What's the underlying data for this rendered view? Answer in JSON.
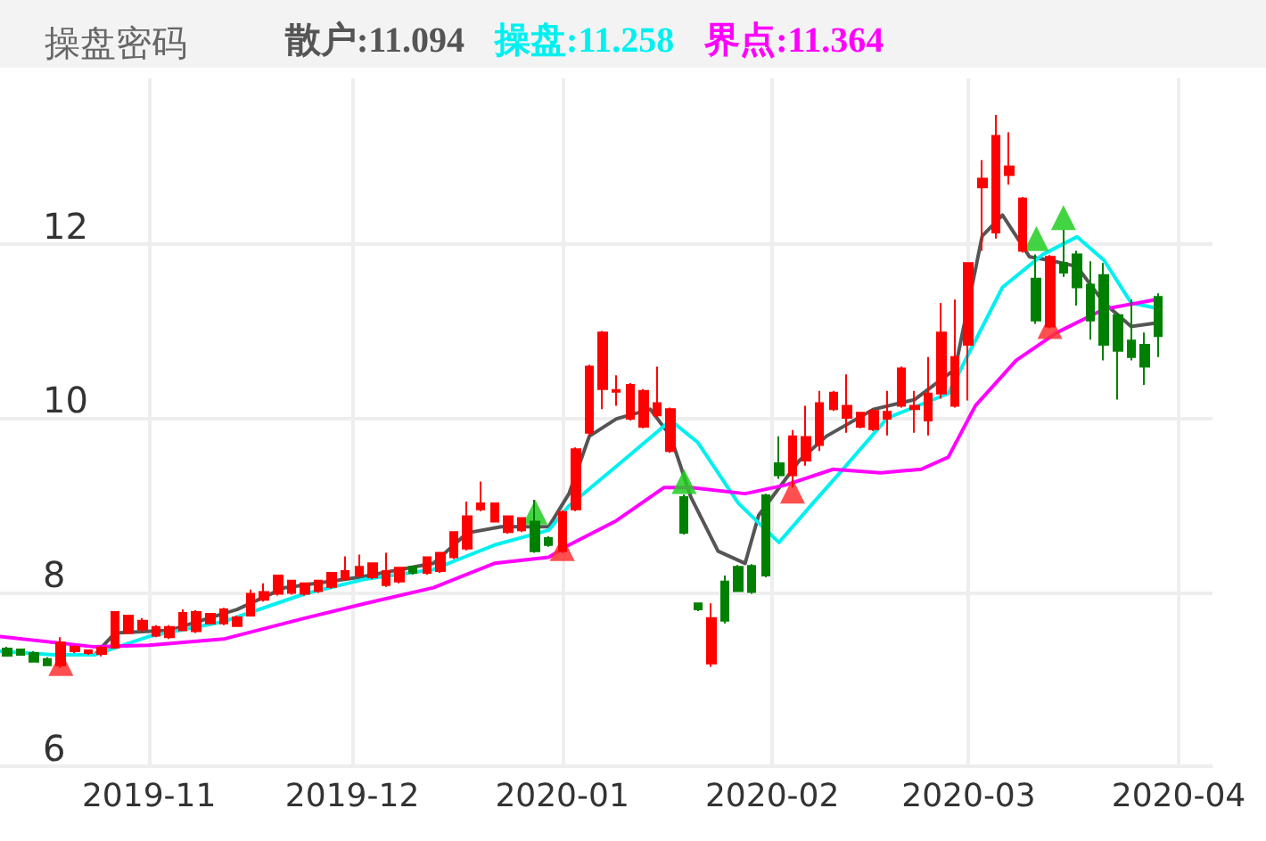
{
  "chart_data": {
    "type": "candlestick",
    "title": "操盘密码",
    "legend": "top",
    "grid": true,
    "xlim": [
      "2019-10-10",
      "2020-04-06"
    ],
    "xticks": [
      {
        "value": "2019-11-01",
        "label": "2019-11"
      },
      {
        "value": "2019-12-01",
        "label": "2019-12"
      },
      {
        "value": "2020-01-01",
        "label": "2020-01"
      },
      {
        "value": "2020-02-01",
        "label": "2020-02"
      },
      {
        "value": "2020-03-01",
        "label": "2020-03"
      },
      {
        "value": "2020-04-01",
        "label": "2020-04"
      }
    ],
    "ylim": [
      6,
      13.9
    ],
    "yticks": [
      6,
      8,
      10,
      12
    ],
    "x": [
      "2019-10-11",
      "2019-10-13",
      "2019-10-15",
      "2019-10-17",
      "2019-10-19",
      "2019-10-21",
      "2019-10-23",
      "2019-10-25",
      "2019-10-27",
      "2019-10-29",
      "2019-10-31",
      "2019-11-02",
      "2019-11-04",
      "2019-11-06",
      "2019-11-08",
      "2019-11-10",
      "2019-11-12",
      "2019-11-14",
      "2019-11-16",
      "2019-11-18",
      "2019-11-20",
      "2019-11-22",
      "2019-11-24",
      "2019-11-26",
      "2019-11-28",
      "2019-11-30",
      "2019-12-02",
      "2019-12-04",
      "2019-12-06",
      "2019-12-08",
      "2019-12-10",
      "2019-12-12",
      "2019-12-14",
      "2019-12-16",
      "2019-12-18",
      "2019-12-20",
      "2019-12-22",
      "2019-12-24",
      "2019-12-26",
      "2019-12-28",
      "2019-12-30",
      "2020-01-01",
      "2020-01-03",
      "2020-01-05",
      "2020-01-07",
      "2020-01-09",
      "2020-01-11",
      "2020-01-13",
      "2020-01-15",
      "2020-01-17",
      "2020-01-19",
      "2020-01-21",
      "2020-01-23",
      "2020-01-25",
      "2020-01-27",
      "2020-01-29",
      "2020-01-31",
      "2020-02-02",
      "2020-02-04",
      "2020-02-06",
      "2020-02-08",
      "2020-02-10",
      "2020-02-12",
      "2020-02-14",
      "2020-02-16",
      "2020-02-18",
      "2020-02-20",
      "2020-02-22",
      "2020-02-24",
      "2020-02-26",
      "2020-02-28",
      "2020-03-01",
      "2020-03-03",
      "2020-03-05",
      "2020-03-07",
      "2020-03-09",
      "2020-03-11",
      "2020-03-13",
      "2020-03-15",
      "2020-03-17",
      "2020-03-19",
      "2020-03-21",
      "2020-03-23",
      "2020-03-25",
      "2020-03-27",
      "2020-03-29"
    ],
    "ohlc": [
      [
        7.35,
        7.37,
        7.26,
        7.27
      ],
      [
        7.34,
        7.35,
        7.27,
        7.28
      ],
      [
        7.3,
        7.32,
        7.19,
        7.2
      ],
      [
        7.23,
        7.25,
        7.15,
        7.16
      ],
      [
        7.16,
        7.48,
        7.13,
        7.42
      ],
      [
        7.32,
        7.39,
        7.3,
        7.37
      ],
      [
        7.3,
        7.34,
        7.28,
        7.33
      ],
      [
        7.29,
        7.38,
        7.26,
        7.36
      ],
      [
        7.36,
        7.78,
        7.35,
        7.77
      ],
      [
        7.53,
        7.74,
        7.52,
        7.73
      ],
      [
        7.57,
        7.7,
        7.54,
        7.67
      ],
      [
        7.5,
        7.62,
        7.48,
        7.6
      ],
      [
        7.48,
        7.62,
        7.46,
        7.6
      ],
      [
        7.56,
        7.8,
        7.55,
        7.76
      ],
      [
        7.55,
        7.79,
        7.53,
        7.77
      ],
      [
        7.64,
        7.76,
        7.63,
        7.75
      ],
      [
        7.64,
        7.82,
        7.62,
        7.8
      ],
      [
        7.61,
        7.73,
        7.6,
        7.71
      ],
      [
        7.73,
        8.03,
        7.72,
        7.98
      ],
      [
        7.91,
        8.1,
        7.89,
        8.0
      ],
      [
        7.98,
        8.2,
        7.96,
        8.19
      ],
      [
        7.99,
        8.14,
        7.97,
        8.13
      ],
      [
        7.98,
        8.11,
        7.96,
        8.1
      ],
      [
        8.01,
        8.14,
        7.99,
        8.13
      ],
      [
        8.06,
        8.23,
        8.04,
        8.22
      ],
      [
        8.15,
        8.41,
        8.13,
        8.24
      ],
      [
        8.19,
        8.43,
        8.17,
        8.29
      ],
      [
        8.17,
        8.34,
        8.15,
        8.33
      ],
      [
        8.08,
        8.45,
        8.06,
        8.24
      ],
      [
        8.12,
        8.29,
        8.1,
        8.28
      ],
      [
        8.29,
        8.3,
        8.2,
        8.22
      ],
      [
        8.22,
        8.41,
        8.2,
        8.4
      ],
      [
        8.24,
        8.46,
        8.22,
        8.45
      ],
      [
        8.4,
        8.7,
        8.38,
        8.69
      ],
      [
        8.5,
        9.04,
        8.48,
        8.87
      ],
      [
        8.95,
        9.27,
        8.93,
        9.02
      ],
      [
        8.81,
        9.03,
        8.8,
        9.02
      ],
      [
        8.69,
        8.88,
        8.67,
        8.87
      ],
      [
        8.71,
        8.86,
        8.69,
        8.85
      ],
      [
        8.81,
        9.06,
        8.45,
        8.47
      ],
      [
        8.62,
        8.64,
        8.52,
        8.54
      ],
      [
        8.47,
        8.94,
        8.45,
        8.92
      ],
      [
        8.95,
        9.66,
        8.93,
        9.64
      ],
      [
        9.83,
        10.61,
        9.79,
        10.59
      ],
      [
        10.33,
        11.0,
        10.1,
        10.98
      ],
      [
        10.3,
        10.49,
        10.14,
        10.32
      ],
      [
        9.99,
        10.4,
        9.97,
        10.38
      ],
      [
        9.9,
        10.33,
        9.88,
        10.31
      ],
      [
        10.03,
        10.59,
        10.0,
        10.17
      ],
      [
        9.62,
        10.12,
        9.6,
        10.1
      ],
      [
        9.09,
        9.12,
        8.66,
        8.68
      ],
      [
        7.87,
        7.88,
        7.78,
        7.8
      ],
      [
        7.18,
        7.87,
        7.14,
        7.7
      ],
      [
        8.12,
        8.19,
        7.64,
        7.67
      ],
      [
        8.29,
        8.31,
        8.0,
        8.01
      ],
      [
        8.3,
        8.32,
        7.98,
        8.0
      ],
      [
        9.11,
        9.13,
        8.17,
        8.19
      ],
      [
        9.48,
        9.79,
        9.3,
        9.34
      ],
      [
        9.34,
        9.86,
        9.2,
        9.79
      ],
      [
        9.51,
        10.14,
        9.45,
        9.78
      ],
      [
        9.69,
        10.31,
        9.62,
        10.17
      ],
      [
        10.1,
        10.31,
        10.08,
        10.29
      ],
      [
        10.0,
        10.5,
        9.83,
        10.14
      ],
      [
        9.9,
        10.07,
        9.88,
        10.06
      ],
      [
        9.87,
        10.1,
        9.85,
        10.08
      ],
      [
        9.99,
        10.31,
        9.8,
        10.07
      ],
      [
        10.14,
        10.59,
        10.12,
        10.57
      ],
      [
        10.1,
        10.31,
        9.83,
        10.14
      ],
      [
        9.97,
        10.7,
        9.8,
        10.28
      ],
      [
        10.28,
        11.32,
        10.22,
        10.98
      ],
      [
        10.14,
        11.36,
        10.12,
        10.7
      ],
      [
        10.84,
        11.78,
        10.2,
        11.78
      ],
      [
        12.65,
        12.96,
        11.92,
        12.75
      ],
      [
        12.13,
        13.48,
        12.06,
        13.24
      ],
      [
        12.79,
        13.28,
        12.68,
        12.89
      ],
      [
        11.92,
        12.54,
        11.9,
        12.52
      ],
      [
        11.6,
        11.88,
        11.08,
        11.12
      ],
      [
        11.05,
        11.87,
        11.03,
        11.85
      ],
      [
        11.78,
        12.16,
        11.62,
        11.67
      ],
      [
        11.88,
        11.92,
        11.29,
        11.5
      ],
      [
        11.53,
        11.8,
        10.9,
        11.12
      ],
      [
        11.64,
        11.78,
        10.66,
        10.84
      ],
      [
        11.18,
        11.2,
        10.21,
        10.77
      ],
      [
        10.89,
        11.36,
        10.66,
        10.7
      ],
      [
        10.84,
        10.98,
        10.38,
        10.59
      ],
      [
        11.39,
        11.43,
        10.7,
        10.94
      ]
    ],
    "colors": [
      "#008000",
      "#008000",
      "#008000",
      "#008000",
      "#ff0000",
      "#ff0000",
      "#ff0000",
      "#ff0000",
      "#ff0000",
      "#ff0000",
      "#ff0000",
      "#ff0000",
      "#ff0000",
      "#ff0000",
      "#ff0000",
      "#ff0000",
      "#ff0000",
      "#ff0000",
      "#ff0000",
      "#ff0000",
      "#ff0000",
      "#ff0000",
      "#ff0000",
      "#ff0000",
      "#ff0000",
      "#ff0000",
      "#ff0000",
      "#ff0000",
      "#ff0000",
      "#ff0000",
      "#008000",
      "#ff0000",
      "#ff0000",
      "#ff0000",
      "#ff0000",
      "#ff0000",
      "#ff0000",
      "#ff0000",
      "#ff0000",
      "#008000",
      "#008000",
      "#ff0000",
      "#ff0000",
      "#ff0000",
      "#ff0000",
      "#ff0000",
      "#ff0000",
      "#ff0000",
      "#ff0000",
      "#ff0000",
      "#008000",
      "#008000",
      "#ff0000",
      "#008000",
      "#008000",
      "#008000",
      "#008000",
      "#008000",
      "#ff0000",
      "#ff0000",
      "#ff0000",
      "#ff0000",
      "#ff0000",
      "#ff0000",
      "#ff0000",
      "#ff0000",
      "#ff0000",
      "#ff0000",
      "#ff0000",
      "#ff0000",
      "#ff0000",
      "#ff0000",
      "#ff0000",
      "#ff0000",
      "#ff0000",
      "#ff0000",
      "#008000",
      "#ff0000",
      "#008000",
      "#008000",
      "#008000",
      "#008000",
      "#008000",
      "#008000",
      "#008000",
      "#008000"
    ],
    "series": [
      {
        "type": "line",
        "name": "散户:11.094",
        "color": "#555555",
        "x": [
          "2019-10-24",
          "2019-10-27",
          "2019-11-04",
          "2019-11-14",
          "2019-11-21",
          "2019-12-02",
          "2019-12-13",
          "2019-12-18",
          "2019-12-23",
          "2019-12-30",
          "2020-01-02",
          "2020-01-05",
          "2020-01-09",
          "2020-01-14",
          "2020-01-17",
          "2020-01-20",
          "2020-01-24",
          "2020-01-28",
          "2020-01-30",
          "2020-02-05",
          "2020-02-09",
          "2020-02-16",
          "2020-02-22",
          "2020-02-28",
          "2020-03-03",
          "2020-03-06",
          "2020-03-10",
          "2020-03-13",
          "2020-03-17",
          "2020-03-21",
          "2020-03-25",
          "2020-03-29"
        ],
        "values": [
          7.28,
          7.53,
          7.56,
          7.8,
          8.05,
          8.17,
          8.33,
          8.68,
          8.75,
          8.75,
          9.13,
          9.79,
          9.99,
          10.1,
          9.79,
          9.09,
          8.47,
          8.33,
          8.88,
          9.51,
          9.79,
          10.1,
          10.21,
          10.56,
          12.09,
          12.33,
          11.85,
          11.81,
          11.74,
          11.32,
          11.05,
          11.094
        ]
      },
      {
        "type": "line",
        "name": "操盘:11.258",
        "color": "#00f0f0",
        "x": [
          "2019-10-10",
          "2019-10-18",
          "2019-10-24",
          "2019-11-01",
          "2019-11-12",
          "2019-11-24",
          "2019-12-03",
          "2019-12-13",
          "2019-12-22",
          "2019-12-30",
          "2020-01-02",
          "2020-01-10",
          "2020-01-17",
          "2020-01-21",
          "2020-01-27",
          "2020-02-02",
          "2020-02-07",
          "2020-02-11",
          "2020-02-18",
          "2020-02-27",
          "2020-03-06",
          "2020-03-12",
          "2020-03-17",
          "2020-03-21",
          "2020-03-25",
          "2020-03-29"
        ],
        "values": [
          7.32,
          7.28,
          7.28,
          7.49,
          7.66,
          7.98,
          8.15,
          8.26,
          8.54,
          8.71,
          8.99,
          9.51,
          9.97,
          9.72,
          9.02,
          8.57,
          9.02,
          9.37,
          10.0,
          10.28,
          11.5,
          11.88,
          12.08,
          11.81,
          11.32,
          11.258
        ]
      },
      {
        "type": "line",
        "name": "界点:11.364",
        "color": "#ff00ff",
        "x": [
          "2019-10-10",
          "2019-10-24",
          "2019-11-01",
          "2019-11-12",
          "2019-11-24",
          "2019-12-03",
          "2019-12-13",
          "2019-12-22",
          "2019-12-30",
          "2020-01-02",
          "2020-01-09",
          "2020-01-16",
          "2020-01-20",
          "2020-01-28",
          "2020-02-03",
          "2020-02-10",
          "2020-02-17",
          "2020-02-23",
          "2020-02-27",
          "2020-03-02",
          "2020-03-08",
          "2020-03-14",
          "2020-03-21",
          "2020-03-29"
        ],
        "values": [
          7.49,
          7.37,
          7.39,
          7.46,
          7.7,
          7.87,
          8.05,
          8.33,
          8.4,
          8.54,
          8.82,
          9.2,
          9.2,
          9.13,
          9.23,
          9.41,
          9.37,
          9.41,
          9.55,
          10.14,
          10.66,
          10.98,
          11.25,
          11.364
        ]
      },
      {
        "type": "scatter",
        "marker": "triangle",
        "color": "#ff3030",
        "x": [
          "2019-10-19",
          "2020-01-01",
          "2020-02-04",
          "2020-03-13"
        ],
        "values": [
          7.18,
          8.5,
          9.16,
          11.05
        ]
      },
      {
        "type": "scatter",
        "marker": "triangle",
        "color": "#22cc22",
        "x": [
          "2019-12-28",
          "2020-01-19",
          "2020-03-11",
          "2020-03-15"
        ],
        "values": [
          8.92,
          9.27,
          12.06,
          12.3
        ]
      }
    ]
  }
}
